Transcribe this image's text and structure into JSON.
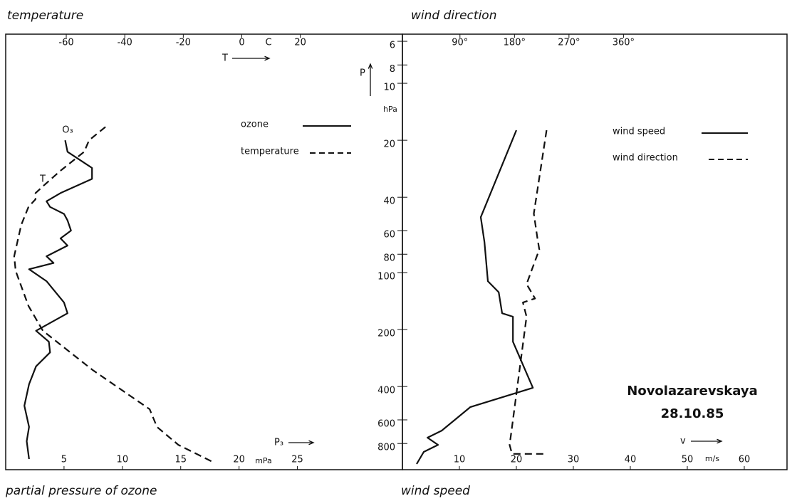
{
  "chart_data": [
    {
      "type": "line",
      "top_axis_label": "temperature",
      "top_symbol": "T",
      "top_unit": "C",
      "bottom_axis_label": "partial pressure of ozone",
      "bottom_symbol": "P₃",
      "bottom_unit": "mPa",
      "xlim": [
        0,
        34
      ],
      "xticks": [
        5,
        10,
        15,
        20,
        25
      ],
      "x2lim": [
        -80.7,
        54.9
      ],
      "x2ticks": [
        -60,
        -40,
        -20,
        0,
        20
      ],
      "ylim": [
        5.5,
        1100
      ],
      "ylog": true,
      "y_inverted": true,
      "yticks": [
        6,
        8,
        10,
        20,
        40,
        60,
        80,
        100,
        200,
        400,
        600,
        800
      ],
      "y_label": "P",
      "y_unit": "hPa",
      "series": [
        {
          "name": "ozone",
          "label": "O₃",
          "color": "#111",
          "dashed": false,
          "axis": "x",
          "pressure": [
            20,
            23,
            28,
            32,
            38,
            42,
            45,
            49,
            53,
            60,
            66,
            72,
            82,
            89,
            96,
            111,
            144,
            164,
            203,
            232,
            264,
            313,
            389,
            505,
            654,
            778,
            966
          ],
          "values": [
            5.1,
            5.3,
            7.4,
            7.4,
            4.7,
            3.5,
            3.8,
            5.0,
            5.3,
            5.6,
            4.7,
            5.3,
            3.5,
            4.1,
            2.0,
            3.5,
            5.0,
            5.3,
            2.6,
            3.7,
            3.8,
            2.6,
            2.0,
            1.6,
            2.0,
            1.8,
            2.0
          ]
        },
        {
          "name": "temperature",
          "label": "T",
          "color": "#111",
          "dashed": true,
          "axis": "x2",
          "pressure": [
            17,
            20,
            23,
            29,
            35,
            38,
            41,
            45,
            56,
            82,
            98,
            150,
            203,
            327,
            527,
            654,
            813,
            1009
          ],
          "values": [
            -46.6,
            -52.2,
            -53.9,
            -62,
            -68,
            -70.5,
            -70.5,
            -72.9,
            -75.4,
            -77.8,
            -77.3,
            -72.9,
            -68,
            -51,
            -31.5,
            -29,
            -21.7,
            -9.5
          ]
        }
      ]
    },
    {
      "type": "line",
      "top_axis_label": "wind direction",
      "bottom_axis_label": "wind speed",
      "bottom_symbol": "v",
      "bottom_unit": "m/s",
      "xlim": [
        0,
        67.5
      ],
      "xticks": [
        10,
        20,
        30,
        40,
        50,
        60
      ],
      "x2lim": [
        -5,
        630
      ],
      "x2ticks": [
        {
          "value": 90,
          "label": "90°"
        },
        {
          "value": 180,
          "label": "180°"
        },
        {
          "value": 270,
          "label": "270°"
        },
        {
          "value": 360,
          "label": "360°"
        }
      ],
      "ylim": [
        5.5,
        1100
      ],
      "ylog": true,
      "y_inverted": true,
      "series": [
        {
          "name": "wind speed",
          "color": "#111",
          "dashed": false,
          "axis": "x",
          "pressure": [
            17.7,
            51,
            69,
            111,
            127,
            164,
            171,
            232,
            406,
            514,
            684,
            745,
            813,
            886,
            1026
          ],
          "values": [
            20,
            13.75,
            14.4,
            15,
            16.9,
            17.5,
            19.4,
            19.4,
            22.9,
            11.9,
            6.9,
            4.4,
            6.25,
            3.75,
            2.5
          ]
        },
        {
          "name": "wind direction",
          "color": "#111",
          "dashed": true,
          "axis": "x2",
          "pressure": [
            17.7,
            48.8,
            66,
            75.5,
            115,
            137,
            144,
            171,
            654,
            813,
            908,
            908
          ],
          "values": [
            233,
            212,
            218,
            221,
            200,
            214,
            194,
            200,
            176,
            172,
            176,
            229
          ]
        }
      ],
      "annotations": [
        "Novolazarevskaya",
        "28.10.85"
      ]
    }
  ]
}
